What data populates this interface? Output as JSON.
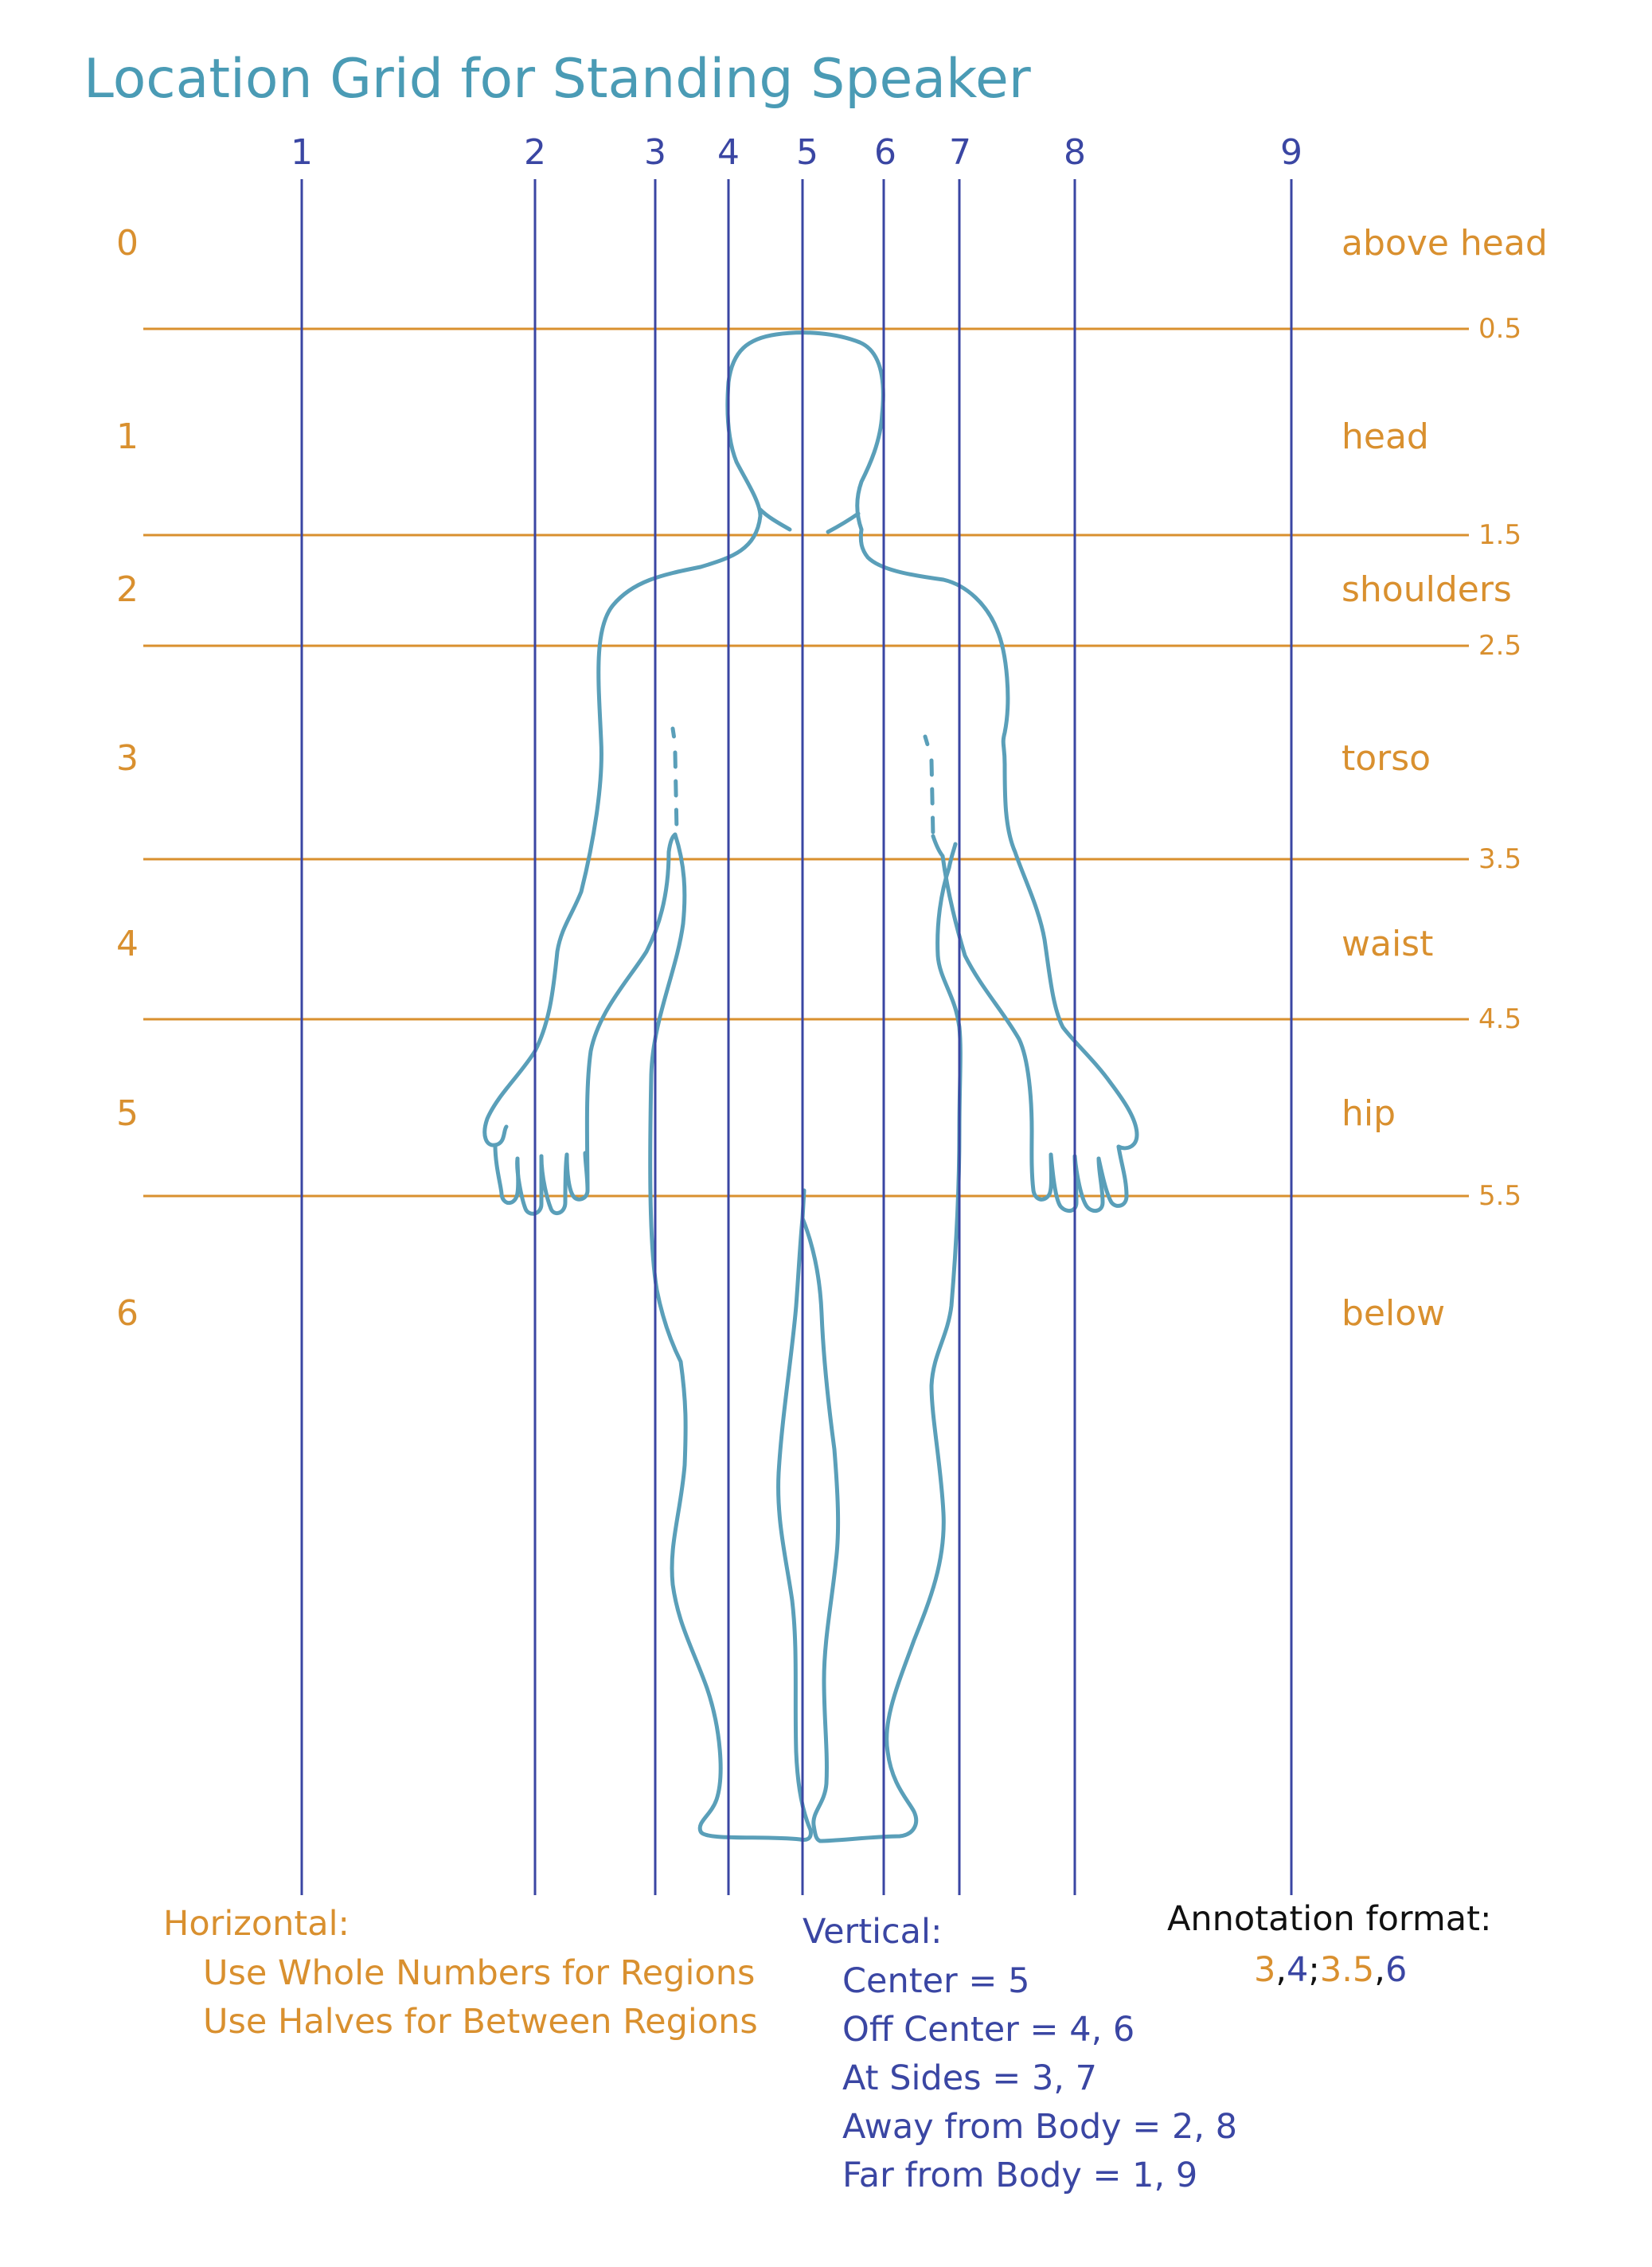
{
  "title": "Location Grid for Standing Speaker",
  "colors": {
    "title": "#4a9bb5",
    "vertical": "#3a46a3",
    "horizontal": "#d9902f",
    "body": "#5a9fb9",
    "format_title": "#111111"
  },
  "columns": [
    {
      "label": "1"
    },
    {
      "label": "2"
    },
    {
      "label": "3"
    },
    {
      "label": "4"
    },
    {
      "label": "5"
    },
    {
      "label": "6"
    },
    {
      "label": "7"
    },
    {
      "label": "8"
    },
    {
      "label": "9"
    }
  ],
  "rows": [
    {
      "num": "0",
      "label": "above head"
    },
    {
      "num": "1",
      "label": "head"
    },
    {
      "num": "2",
      "label": "shoulders"
    },
    {
      "num": "3",
      "label": "torso"
    },
    {
      "num": "4",
      "label": "waist"
    },
    {
      "num": "5",
      "label": "hip"
    },
    {
      "num": "6",
      "label": "below"
    }
  ],
  "half_lines": [
    "0.5",
    "1.5",
    "2.5",
    "3.5",
    "4.5",
    "5.5"
  ],
  "horizontal_note": {
    "heading": "Horizontal:",
    "line1": "Use Whole Numbers for Regions",
    "line2": "Use Halves for Between Regions"
  },
  "vertical_note": {
    "heading": "Vertical:",
    "items": [
      "Center = 5",
      "Off Center = 4, 6",
      "At Sides = 3, 7",
      "Away from Body = 2, 8",
      "Far from Body = 1, 9"
    ]
  },
  "annotation_format": {
    "heading": "Annotation format:",
    "part1": "3",
    "sep1": ",",
    "part2": "4",
    "sep2": ";",
    "part3": "3.5",
    "sep3": ",",
    "part4": "6"
  },
  "figure": {
    "icon": "human-body-outline-icon"
  }
}
